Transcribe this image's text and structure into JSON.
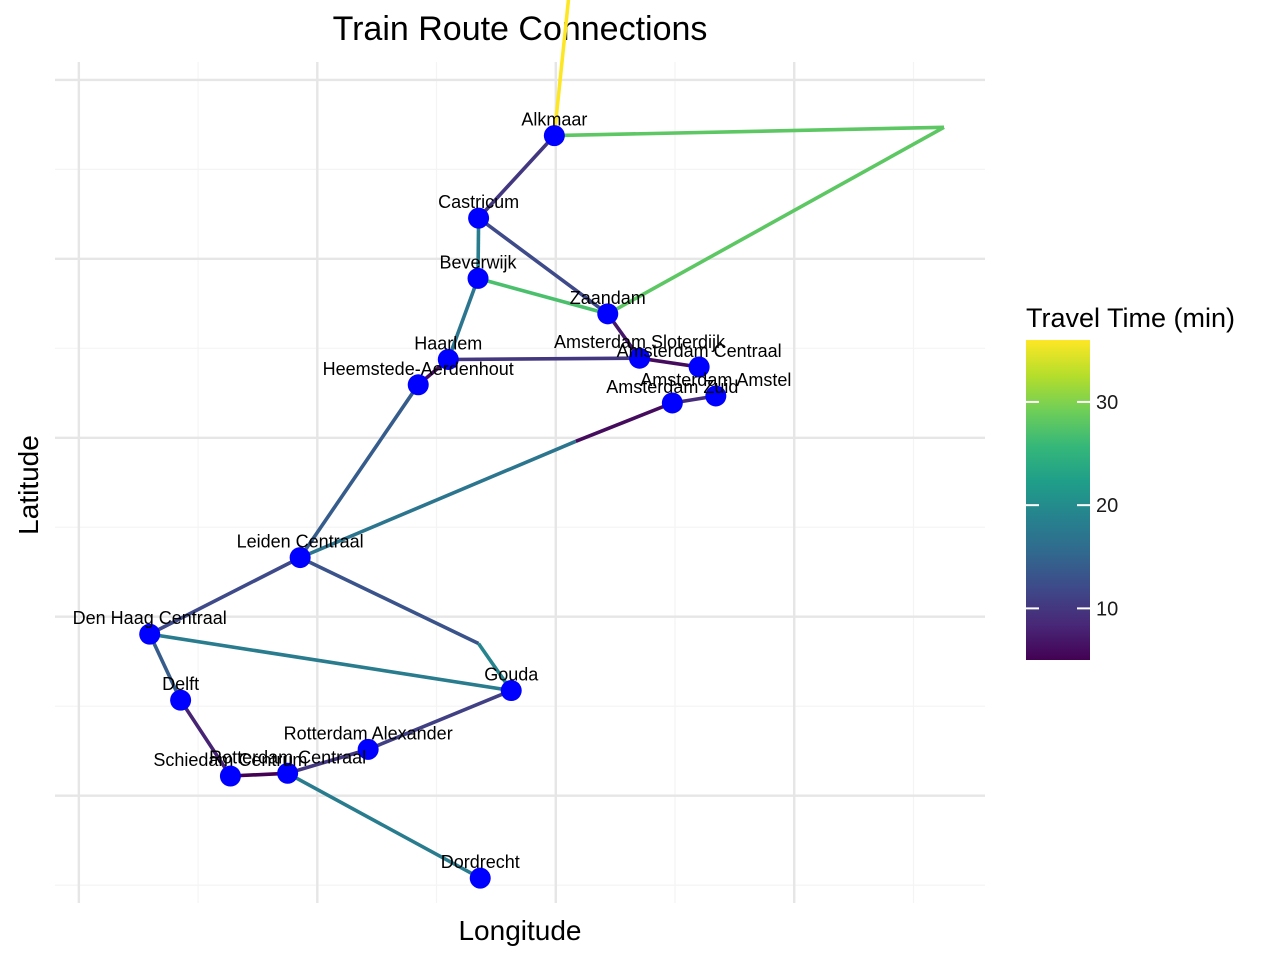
{
  "chart_data": {
    "type": "network",
    "title": "Train Route Connections",
    "xlabel": "Longitude",
    "ylabel": "Latitude",
    "xlim": [
      4.225,
      5.2
    ],
    "ylim": [
      51.78,
      52.72
    ],
    "grid": true,
    "x_tick_labels_shown": false,
    "y_tick_labels_shown": false,
    "colorbar": {
      "title": "Travel Time (min)",
      "range": [
        5,
        36
      ],
      "ticks": [
        10,
        20,
        30
      ],
      "colormap": "viridis",
      "placement": "right"
    },
    "stations": [
      {
        "name": "Alkmaar",
        "x": 4.7485,
        "y": 52.6377
      },
      {
        "name": "Castricum",
        "x": 4.6691,
        "y": 52.5455
      },
      {
        "name": "Beverwijk",
        "x": 4.6685,
        "y": 52.4781
      },
      {
        "name": "Zaandam",
        "x": 4.8045,
        "y": 52.4385
      },
      {
        "name": "Haarlem",
        "x": 4.6373,
        "y": 52.3875
      },
      {
        "name": "Heemstede-Aerdenhout",
        "x": 4.6058,
        "y": 52.3592
      },
      {
        "name": "Amsterdam Sloterdijk",
        "x": 4.8378,
        "y": 52.3889
      },
      {
        "name": "Amsterdam Centraal",
        "x": 4.9003,
        "y": 52.3791
      },
      {
        "name": "Amsterdam Zuid",
        "x": 4.8722,
        "y": 52.3389
      },
      {
        "name": "Amsterdam Amstel",
        "x": 4.9178,
        "y": 52.3467
      },
      {
        "name": "Leiden Centraal",
        "x": 4.482,
        "y": 52.1661
      },
      {
        "name": "Den Haag Centraal",
        "x": 4.3243,
        "y": 52.0805
      },
      {
        "name": "Delft",
        "x": 4.3567,
        "y": 52.0067
      },
      {
        "name": "Gouda",
        "x": 4.7033,
        "y": 52.0175
      },
      {
        "name": "Rotterdam Alexander",
        "x": 4.5533,
        "y": 51.9517
      },
      {
        "name": "Rotterdam Centraal",
        "x": 4.4689,
        "y": 51.925
      },
      {
        "name": "Schiedam Centrum",
        "x": 4.4089,
        "y": 51.9219
      },
      {
        "name": "Dordrecht",
        "x": 4.6708,
        "y": 51.8078
      }
    ],
    "connections": [
      {
        "path": [
          [
            4.7485,
            52.6377
          ],
          [
            4.771,
            52.868
          ]
        ],
        "time": 36
      },
      {
        "path": [
          [
            4.7485,
            52.6377
          ],
          [
            5.157,
            52.647
          ]
        ],
        "time": 28
      },
      {
        "path": [
          [
            5.157,
            52.647
          ],
          [
            4.8045,
            52.4385
          ]
        ],
        "time": 28
      },
      {
        "path": [
          [
            4.7485,
            52.6377
          ],
          [
            4.6691,
            52.5455
          ]
        ],
        "time": 10
      },
      {
        "path": [
          [
            4.6691,
            52.5455
          ],
          [
            4.8045,
            52.4385
          ]
        ],
        "time": 12
      },
      {
        "path": [
          [
            4.6691,
            52.5455
          ],
          [
            4.6685,
            52.4781
          ]
        ],
        "time": 18
      },
      {
        "path": [
          [
            4.6685,
            52.4781
          ],
          [
            4.8045,
            52.4385
          ]
        ],
        "time": 27
      },
      {
        "path": [
          [
            4.6685,
            52.4781
          ],
          [
            4.6373,
            52.3875
          ]
        ],
        "time": 17
      },
      {
        "path": [
          [
            4.8045,
            52.4385
          ],
          [
            4.8378,
            52.3889
          ]
        ],
        "time": 7
      },
      {
        "path": [
          [
            4.6373,
            52.3875
          ],
          [
            4.8378,
            52.3889
          ]
        ],
        "time": 10
      },
      {
        "path": [
          [
            4.8378,
            52.3889
          ],
          [
            4.9003,
            52.3791
          ]
        ],
        "time": 6
      },
      {
        "path": [
          [
            4.6373,
            52.3875
          ],
          [
            4.6058,
            52.3592
          ]
        ],
        "time": 6
      },
      {
        "path": [
          [
            4.6058,
            52.3592
          ],
          [
            4.482,
            52.1661
          ]
        ],
        "time": 14
      },
      {
        "path": [
          [
            4.8722,
            52.3389
          ],
          [
            4.9178,
            52.3467
          ]
        ],
        "time": 9
      },
      {
        "path": [
          [
            4.8722,
            52.3389
          ],
          [
            4.771,
            52.296
          ]
        ],
        "time": 6
      },
      {
        "path": [
          [
            4.771,
            52.296
          ],
          [
            4.482,
            52.1661
          ]
        ],
        "time": 17
      },
      {
        "path": [
          [
            4.482,
            52.1661
          ],
          [
            4.3243,
            52.0805
          ]
        ],
        "time": 12
      },
      {
        "path": [
          [
            4.482,
            52.1661
          ],
          [
            4.669,
            52.07
          ]
        ],
        "time": 13
      },
      {
        "path": [
          [
            4.669,
            52.07
          ],
          [
            4.7033,
            52.0175
          ]
        ],
        "time": 19
      },
      {
        "path": [
          [
            4.3243,
            52.0805
          ],
          [
            4.7033,
            52.0175
          ]
        ],
        "time": 18
      },
      {
        "path": [
          [
            4.3243,
            52.0805
          ],
          [
            4.3567,
            52.0067
          ]
        ],
        "time": 14
      },
      {
        "path": [
          [
            4.3567,
            52.0067
          ],
          [
            4.4089,
            51.9219
          ]
        ],
        "time": 8
      },
      {
        "path": [
          [
            4.4089,
            51.9219
          ],
          [
            4.4689,
            51.925
          ]
        ],
        "time": 5
      },
      {
        "path": [
          [
            4.4689,
            51.925
          ],
          [
            4.5533,
            51.9517
          ]
        ],
        "time": 10
      },
      {
        "path": [
          [
            4.5533,
            51.9517
          ],
          [
            4.7033,
            52.0175
          ]
        ],
        "time": 11
      },
      {
        "path": [
          [
            4.4689,
            51.925
          ],
          [
            4.6708,
            51.8078
          ]
        ],
        "time": 18
      }
    ]
  },
  "colors": {
    "station_marker": "#0000ff",
    "grid_major": "#e6e6e6",
    "grid_minor": "#f4f4f4",
    "viridis": [
      "#440154",
      "#482878",
      "#3e4989",
      "#31688e",
      "#26828e",
      "#1f9e89",
      "#35b779",
      "#6ece58",
      "#b5de2b",
      "#fde725"
    ]
  }
}
